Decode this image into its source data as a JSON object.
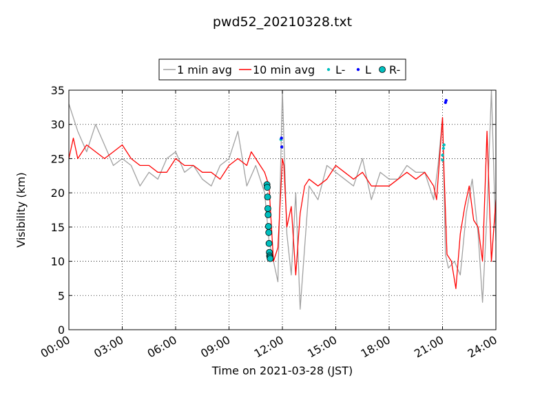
{
  "chart_data": {
    "type": "line",
    "title": "pwd52_20210328.txt",
    "xlabel": "Time on 2021-03-28 (JST)",
    "ylabel": "Visibility (km)",
    "xlim": [
      "00:00",
      "24:00"
    ],
    "ylim": [
      0,
      35
    ],
    "grid": true,
    "legend_position": "top-center, above plot",
    "x_ticks": [
      "00:00",
      "03:00",
      "06:00",
      "09:00",
      "12:00",
      "15:00",
      "18:00",
      "21:00",
      "24:00"
    ],
    "y_ticks": [
      0,
      5,
      10,
      15,
      20,
      25,
      30,
      35
    ],
    "series": [
      {
        "name": "1 min avg",
        "style": "line",
        "color": "#a0a0a0",
        "x": [
          "00:00",
          "00:30",
          "01:00",
          "01:30",
          "02:00",
          "02:30",
          "03:00",
          "03:30",
          "04:00",
          "04:30",
          "05:00",
          "05:30",
          "06:00",
          "06:30",
          "07:00",
          "07:30",
          "08:00",
          "08:30",
          "09:00",
          "09:30",
          "10:00",
          "10:30",
          "11:00",
          "11:15",
          "11:30",
          "11:45",
          "12:00",
          "12:15",
          "12:30",
          "12:45",
          "13:00",
          "13:30",
          "14:00",
          "14:30",
          "15:00",
          "15:30",
          "16:00",
          "16:30",
          "17:00",
          "17:30",
          "18:00",
          "18:30",
          "19:00",
          "19:30",
          "20:00",
          "20:30",
          "20:45",
          "21:00",
          "21:10",
          "21:20",
          "21:40",
          "22:00",
          "22:20",
          "22:40",
          "23:00",
          "23:15",
          "23:30",
          "23:45",
          "24:00"
        ],
        "y": [
          33,
          29,
          26,
          30,
          27,
          24,
          25,
          24,
          21,
          23,
          22,
          25,
          26,
          23,
          24,
          22,
          21,
          24,
          25,
          29,
          21,
          24,
          20,
          13,
          10,
          7,
          35,
          14,
          8,
          20,
          3,
          21,
          19,
          24,
          23,
          22,
          21,
          25,
          19,
          23,
          22,
          22,
          24,
          23,
          23,
          19,
          24,
          31,
          11,
          9,
          10,
          8,
          17,
          22,
          14,
          4,
          17,
          35,
          13
        ]
      },
      {
        "name": "10 min avg",
        "style": "line",
        "color": "#ff0000",
        "x": [
          "00:00",
          "00:15",
          "00:30",
          "00:45",
          "01:00",
          "01:30",
          "02:00",
          "02:30",
          "03:00",
          "03:30",
          "04:00",
          "04:30",
          "05:00",
          "05:30",
          "06:00",
          "06:30",
          "07:00",
          "07:30",
          "08:00",
          "08:30",
          "09:00",
          "09:30",
          "10:00",
          "10:15",
          "10:30",
          "10:45",
          "11:00",
          "11:15",
          "11:30",
          "11:45",
          "12:00",
          "12:05",
          "12:15",
          "12:30",
          "12:45",
          "13:00",
          "13:15",
          "13:30",
          "14:00",
          "14:30",
          "15:00",
          "15:30",
          "16:00",
          "16:30",
          "17:00",
          "17:30",
          "18:00",
          "18:30",
          "19:00",
          "19:30",
          "20:00",
          "20:30",
          "20:40",
          "21:00",
          "21:05",
          "21:15",
          "21:30",
          "21:45",
          "22:00",
          "22:15",
          "22:30",
          "22:45",
          "23:00",
          "23:15",
          "23:30",
          "23:45",
          "24:00"
        ],
        "y": [
          25,
          28,
          25,
          26,
          27,
          26,
          25,
          26,
          27,
          25,
          24,
          24,
          23,
          23,
          25,
          24,
          24,
          23,
          23,
          22,
          24,
          25,
          24,
          26,
          25,
          24,
          23,
          21,
          10,
          12,
          25,
          24,
          15,
          18,
          8,
          17,
          21,
          22,
          21,
          22,
          24,
          23,
          22,
          23,
          21,
          21,
          21,
          22,
          23,
          22,
          23,
          21,
          19,
          31,
          23,
          11,
          10,
          6,
          14,
          18,
          21,
          16,
          15,
          10,
          29,
          10,
          19
        ]
      },
      {
        "name": "L-",
        "style": "marker",
        "color": "#00bfbf",
        "x": [
          "11:55",
          "21:00",
          "21:00",
          "21:03",
          "21:05"
        ],
        "y": [
          27.8,
          24.8,
          25.5,
          26.5,
          27
        ]
      },
      {
        "name": "L",
        "style": "marker",
        "color": "#0000ff",
        "x": [
          "11:57",
          "11:58",
          "21:10",
          "21:12"
        ],
        "y": [
          28,
          26.7,
          33.2,
          33.5
        ]
      },
      {
        "name": "R-",
        "style": "marker",
        "color": "#00bfbf",
        "x": [
          "11:08",
          "11:09",
          "11:10",
          "11:11",
          "11:12",
          "11:13",
          "11:14",
          "11:15",
          "11:16",
          "11:17",
          "11:18",
          "11:19"
        ],
        "y": [
          21.2,
          20.8,
          19.4,
          17.7,
          16.8,
          15.1,
          14.2,
          12.6,
          11.3,
          10.8,
          10.6,
          10.4
        ]
      }
    ]
  }
}
